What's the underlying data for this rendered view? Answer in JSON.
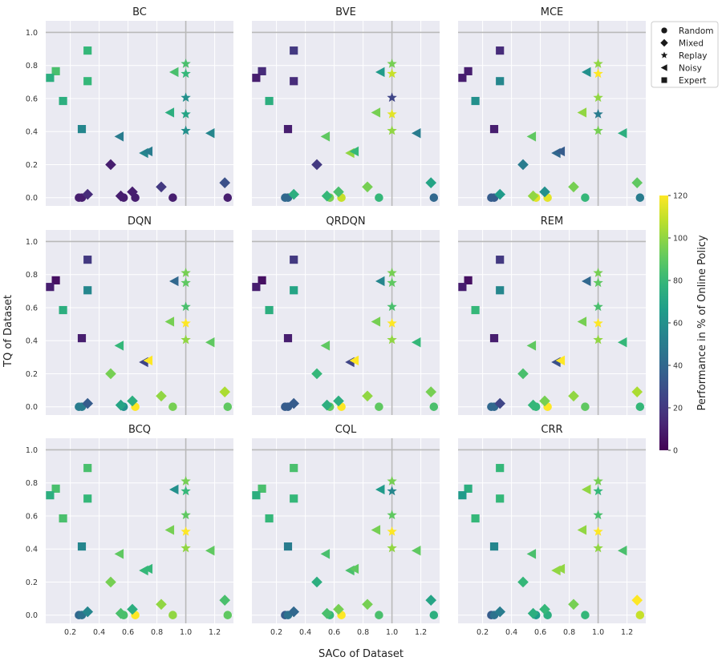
{
  "figure": {
    "xlabel": "SACo of Dataset",
    "ylabel": "TQ of Dataset",
    "colorbar_label": "Performance in % of Online Policy",
    "colorbar_ticks": [
      "0",
      "20",
      "40",
      "60",
      "80",
      "100",
      "120"
    ],
    "legend": [
      {
        "label": "Random",
        "marker": "circle"
      },
      {
        "label": "Mixed",
        "marker": "diamond"
      },
      {
        "label": "Replay",
        "marker": "star"
      },
      {
        "label": "Noisy",
        "marker": "triangle-left"
      },
      {
        "label": "Expert",
        "marker": "square"
      }
    ],
    "x_ticks": [
      "0.2",
      "0.4",
      "0.6",
      "0.8",
      "1.0",
      "1.2"
    ],
    "y_ticks": [
      "0.0",
      "0.2",
      "0.4",
      "0.6",
      "0.8",
      "1.0"
    ]
  },
  "chart_data": {
    "type": "scatter",
    "xlim": [
      0.03,
      1.33
    ],
    "ylim": [
      -0.05,
      1.07
    ],
    "reference_lines": {
      "x": 1.0,
      "y": 1.0
    },
    "colormap": "viridis",
    "color_range": [
      0,
      120
    ],
    "points": [
      {
        "x": 0.26,
        "y": 0.0,
        "m": "circle"
      },
      {
        "x": 0.28,
        "y": 0.0,
        "m": "circle"
      },
      {
        "x": 0.57,
        "y": 0.0,
        "m": "circle"
      },
      {
        "x": 0.65,
        "y": 0.0,
        "m": "circle"
      },
      {
        "x": 0.91,
        "y": 0.0,
        "m": "circle"
      },
      {
        "x": 1.29,
        "y": 0.0,
        "m": "circle"
      },
      {
        "x": 0.32,
        "y": 0.02,
        "m": "diamond"
      },
      {
        "x": 0.48,
        "y": 0.2,
        "m": "diamond"
      },
      {
        "x": 0.55,
        "y": 0.01,
        "m": "diamond"
      },
      {
        "x": 0.63,
        "y": 0.035,
        "m": "diamond"
      },
      {
        "x": 0.83,
        "y": 0.065,
        "m": "diamond"
      },
      {
        "x": 1.27,
        "y": 0.09,
        "m": "diamond"
      },
      {
        "x": 1.0,
        "y": 0.81,
        "m": "star"
      },
      {
        "x": 1.0,
        "y": 0.75,
        "m": "star"
      },
      {
        "x": 1.0,
        "y": 0.605,
        "m": "star"
      },
      {
        "x": 1.0,
        "y": 0.505,
        "m": "star"
      },
      {
        "x": 1.0,
        "y": 0.405,
        "m": "star"
      },
      {
        "x": 0.92,
        "y": 0.76,
        "m": "triangle-left"
      },
      {
        "x": 0.89,
        "y": 0.515,
        "m": "triangle-left"
      },
      {
        "x": 1.17,
        "y": 0.39,
        "m": "triangle-left"
      },
      {
        "x": 0.54,
        "y": 0.37,
        "m": "triangle-left"
      },
      {
        "x": 0.71,
        "y": 0.27,
        "m": "triangle-left"
      },
      {
        "x": 0.74,
        "y": 0.28,
        "m": "triangle-left"
      },
      {
        "x": 0.32,
        "y": 0.89,
        "m": "square"
      },
      {
        "x": 0.1,
        "y": 0.765,
        "m": "square"
      },
      {
        "x": 0.06,
        "y": 0.725,
        "m": "square"
      },
      {
        "x": 0.32,
        "y": 0.705,
        "m": "square"
      },
      {
        "x": 0.15,
        "y": 0.585,
        "m": "square"
      },
      {
        "x": 0.28,
        "y": 0.415,
        "m": "square"
      }
    ],
    "panels": [
      {
        "title": "BC",
        "values": [
          10,
          10,
          10,
          10,
          10,
          10,
          15,
          10,
          10,
          10,
          20,
          30,
          85,
          80,
          60,
          70,
          60,
          85,
          75,
          55,
          50,
          55,
          50,
          80,
          85,
          75,
          80,
          75,
          55
        ]
      },
      {
        "title": "BVE",
        "values": [
          40,
          40,
          95,
          110,
          80,
          40,
          75,
          20,
          80,
          85,
          95,
          70,
          95,
          110,
          25,
          115,
          100,
          65,
          95,
          50,
          90,
          100,
          80,
          20,
          15,
          10,
          15,
          75,
          10
        ]
      },
      {
        "title": "MCE",
        "values": [
          35,
          35,
          115,
          115,
          80,
          50,
          65,
          50,
          100,
          60,
          95,
          90,
          100,
          120,
          100,
          50,
          95,
          60,
          100,
          75,
          90,
          40,
          35,
          15,
          10,
          10,
          55,
          60,
          10
        ]
      },
      {
        "title": "DQN",
        "values": [
          50,
          50,
          60,
          120,
          95,
          90,
          35,
          95,
          70,
          75,
          100,
          105,
          95,
          90,
          85,
          120,
          100,
          40,
          95,
          90,
          80,
          25,
          120,
          20,
          5,
          10,
          55,
          75,
          10
        ]
      },
      {
        "title": "QRDQN",
        "values": [
          35,
          35,
          90,
          120,
          90,
          85,
          35,
          80,
          75,
          75,
          100,
          95,
          95,
          90,
          85,
          120,
          100,
          55,
          95,
          80,
          90,
          25,
          120,
          20,
          5,
          10,
          70,
          75,
          10
        ]
      },
      {
        "title": "REM",
        "values": [
          40,
          40,
          80,
          120,
          90,
          80,
          25,
          85,
          80,
          95,
          100,
          105,
          95,
          90,
          85,
          120,
          100,
          40,
          95,
          80,
          90,
          30,
          120,
          20,
          5,
          10,
          55,
          80,
          10
        ]
      },
      {
        "title": "BCQ",
        "values": [
          40,
          45,
          85,
          120,
          100,
          90,
          55,
          95,
          85,
          75,
          100,
          85,
          95,
          80,
          90,
          120,
          100,
          60,
          95,
          90,
          90,
          80,
          80,
          85,
          85,
          75,
          80,
          85,
          55
        ]
      },
      {
        "title": "CQL",
        "values": [
          35,
          45,
          80,
          120,
          85,
          75,
          40,
          75,
          85,
          95,
          95,
          70,
          95,
          55,
          90,
          120,
          100,
          65,
          95,
          90,
          85,
          85,
          90,
          85,
          85,
          75,
          80,
          80,
          50
        ]
      },
      {
        "title": "CRR",
        "values": [
          35,
          45,
          65,
          75,
          80,
          110,
          50,
          80,
          75,
          80,
          95,
          120,
          95,
          80,
          85,
          120,
          100,
          100,
          100,
          85,
          85,
          100,
          100,
          80,
          75,
          65,
          80,
          80,
          55
        ]
      }
    ]
  }
}
